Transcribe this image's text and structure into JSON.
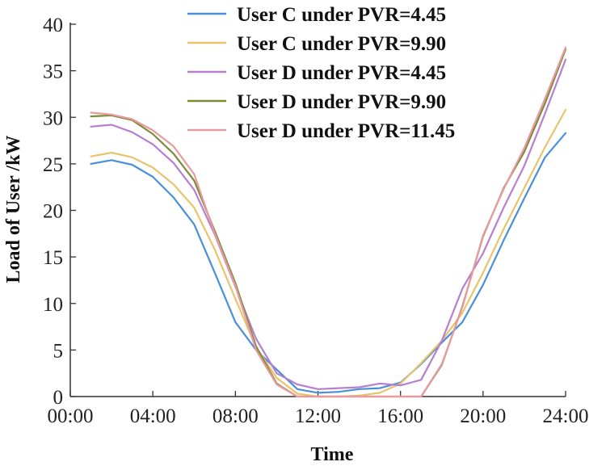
{
  "chart_data": {
    "type": "line",
    "title": "",
    "xlabel": "Time",
    "ylabel": "Load of User /kW",
    "xlim": [
      0,
      24
    ],
    "ylim": [
      0,
      40
    ],
    "x_ticks": [
      0,
      4,
      8,
      12,
      16,
      20,
      24
    ],
    "x_tick_labels": [
      "00:00",
      "04:00",
      "08:00",
      "12:00",
      "16:00",
      "20:00",
      "24:00"
    ],
    "y_ticks": [
      0,
      5,
      10,
      15,
      20,
      25,
      30,
      35,
      40
    ],
    "y_tick_labels": [
      "0",
      "5",
      "10",
      "15",
      "20",
      "25",
      "30",
      "35",
      "40"
    ],
    "legend_position": "top-center",
    "x": [
      1,
      2,
      3,
      4,
      5,
      6,
      7,
      8,
      9,
      10,
      11,
      12,
      13,
      14,
      15,
      16,
      17,
      18,
      19,
      20,
      21,
      22,
      23,
      24
    ],
    "series": [
      {
        "name": "User C under PVR=4.45",
        "color": "#4a90d9",
        "values": [
          25.0,
          25.4,
          24.9,
          23.6,
          21.4,
          18.5,
          13.3,
          8.0,
          5.0,
          2.9,
          0.8,
          0.4,
          0.5,
          0.8,
          0.9,
          1.5,
          3.5,
          5.8,
          8.0,
          12.0,
          16.8,
          21.3,
          25.7,
          28.3
        ]
      },
      {
        "name": "User C under PVR=9.90",
        "color": "#e8c46a",
        "values": [
          25.8,
          26.2,
          25.7,
          24.6,
          22.8,
          20.3,
          15.8,
          10.5,
          5.3,
          2.0,
          0.3,
          0.0,
          0.0,
          0.1,
          0.4,
          1.4,
          3.6,
          6.0,
          9.0,
          13.3,
          18.0,
          22.4,
          26.8,
          30.8
        ]
      },
      {
        "name": "User D under PVR=4.45",
        "color": "#b67fd0",
        "values": [
          29.0,
          29.2,
          28.4,
          27.1,
          25.1,
          22.2,
          17.4,
          11.8,
          6.2,
          2.5,
          1.3,
          0.8,
          0.9,
          1.0,
          1.4,
          1.2,
          1.8,
          6.0,
          11.6,
          15.4,
          20.3,
          24.8,
          30.4,
          36.2
        ]
      },
      {
        "name": "User D under PVR=9.90",
        "color": "#7c8c3a",
        "values": [
          30.1,
          30.2,
          29.7,
          28.2,
          26.1,
          23.2,
          17.8,
          12.2,
          5.4,
          1.4,
          0.0,
          0.0,
          0.0,
          0.0,
          0.0,
          0.0,
          0.0,
          3.4,
          9.7,
          17.2,
          22.4,
          26.3,
          31.5,
          37.3
        ]
      },
      {
        "name": "User D under PVR=11.45",
        "color": "#e89aa0",
        "values": [
          30.5,
          30.3,
          29.8,
          28.6,
          26.9,
          23.9,
          17.5,
          11.9,
          5.0,
          1.3,
          0.0,
          0.0,
          0.0,
          0.0,
          0.0,
          0.0,
          0.0,
          3.5,
          9.6,
          17.3,
          22.3,
          26.7,
          32.0,
          37.5
        ]
      }
    ]
  }
}
